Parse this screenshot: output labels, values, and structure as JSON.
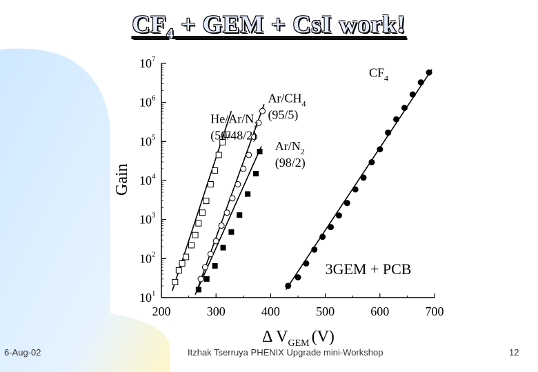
{
  "slide": {
    "title_main": "CF",
    "title_sub": "4",
    "title_rest": " + GEM + CsI work!",
    "date": "6-Aug-02",
    "credit": "Itzhak Tserruya PHENIX Upgrade mini-Workshop",
    "page": "12"
  },
  "theme": {
    "background": "#ffffff",
    "accent_panel": "#cfe8ff",
    "accent_yellow": "#fff6c8"
  },
  "chart_data": {
    "type": "scatter",
    "ylabel": "Gain",
    "xlabel_delta": "Δ V",
    "xlabel_sub": "GEM",
    "xlabel_unit": "(V)",
    "xlim": [
      200,
      700
    ],
    "ylim_exp": [
      1,
      7
    ],
    "y_scale": "log",
    "x_ticks": [
      200,
      300,
      400,
      500,
      600,
      700
    ],
    "y_ticks": [
      {
        "base": "10",
        "exp": "1",
        "value": 10
      },
      {
        "base": "10",
        "exp": "2",
        "value": 100
      },
      {
        "base": "10",
        "exp": "3",
        "value": 1000
      },
      {
        "base": "10",
        "exp": "4",
        "value": 10000
      },
      {
        "base": "10",
        "exp": "5",
        "value": 100000
      },
      {
        "base": "10",
        "exp": "6",
        "value": 1000000
      },
      {
        "base": "10",
        "exp": "7",
        "value": 10000000
      }
    ],
    "series": [
      {
        "name": "He/Ar/N2 (50/48/2)",
        "marker": "open-square",
        "points": [
          [
            225,
            25
          ],
          [
            232,
            50
          ],
          [
            238,
            75
          ],
          [
            245,
            110
          ],
          [
            255,
            220
          ],
          [
            262,
            400
          ],
          [
            268,
            800
          ],
          [
            275,
            1500
          ],
          [
            282,
            3000
          ],
          [
            290,
            8000
          ],
          [
            298,
            18000
          ],
          [
            305,
            45000
          ],
          [
            312,
            95000
          ],
          [
            320,
            150000
          ]
        ],
        "fit": [
          [
            220,
            15
          ],
          [
            328,
            600000
          ]
        ]
      },
      {
        "name": "Ar/CH4 (95/5)",
        "marker": "open-circle",
        "points": [
          [
            272,
            30
          ],
          [
            280,
            60
          ],
          [
            290,
            130
          ],
          [
            300,
            280
          ],
          [
            310,
            700
          ],
          [
            320,
            1500
          ],
          [
            330,
            3500
          ],
          [
            340,
            8000
          ],
          [
            350,
            20000
          ],
          [
            360,
            45000
          ],
          [
            370,
            130000
          ],
          [
            378,
            300000
          ],
          [
            385,
            600000
          ]
        ],
        "fit": [
          [
            265,
            15
          ],
          [
            388,
            900000
          ]
        ]
      },
      {
        "name": "Ar/N2 (98/2)",
        "marker": "filled-square",
        "points": [
          [
            268,
            16
          ],
          [
            283,
            30
          ],
          [
            298,
            65
          ],
          [
            313,
            190
          ],
          [
            328,
            480
          ],
          [
            343,
            1300
          ],
          [
            358,
            4500
          ],
          [
            373,
            15000
          ],
          [
            380,
            55000
          ]
        ],
        "fit": [
          [
            262,
            12
          ],
          [
            383,
            75000
          ]
        ]
      },
      {
        "name": "CF4",
        "marker": "filled-circle",
        "points": [
          [
            432,
            20
          ],
          [
            450,
            33
          ],
          [
            465,
            75
          ],
          [
            480,
            170
          ],
          [
            495,
            360
          ],
          [
            510,
            640
          ],
          [
            525,
            1270
          ],
          [
            540,
            2640
          ],
          [
            555,
            5900
          ],
          [
            570,
            11800
          ],
          [
            585,
            29400
          ],
          [
            600,
            63000
          ],
          [
            615,
            168000
          ],
          [
            630,
            369000
          ],
          [
            645,
            725000
          ],
          [
            660,
            1600000
          ],
          [
            675,
            3260000
          ],
          [
            690,
            5850000
          ]
        ],
        "fit": [
          [
            428,
            16
          ],
          [
            695,
            7000000
          ]
        ]
      }
    ],
    "annotations": [
      {
        "text": "He/Ar/N",
        "sub": "2",
        "line2": "(50/48/2)",
        "at": [
          290,
          300000
        ]
      },
      {
        "text": "Ar/CH",
        "sub": "4",
        "line2": "(95/5)",
        "at": [
          395,
          1000000
        ]
      },
      {
        "text": "Ar/N",
        "sub": "2",
        "line2": "(98/2)",
        "at": [
          408,
          60000
        ]
      },
      {
        "text": "CF",
        "sub": "4",
        "line2": "",
        "at": [
          580,
          4500000
        ]
      },
      {
        "text": "3GEM + PCB",
        "sub": "",
        "line2": "",
        "at": [
          500,
          40
        ]
      }
    ]
  }
}
